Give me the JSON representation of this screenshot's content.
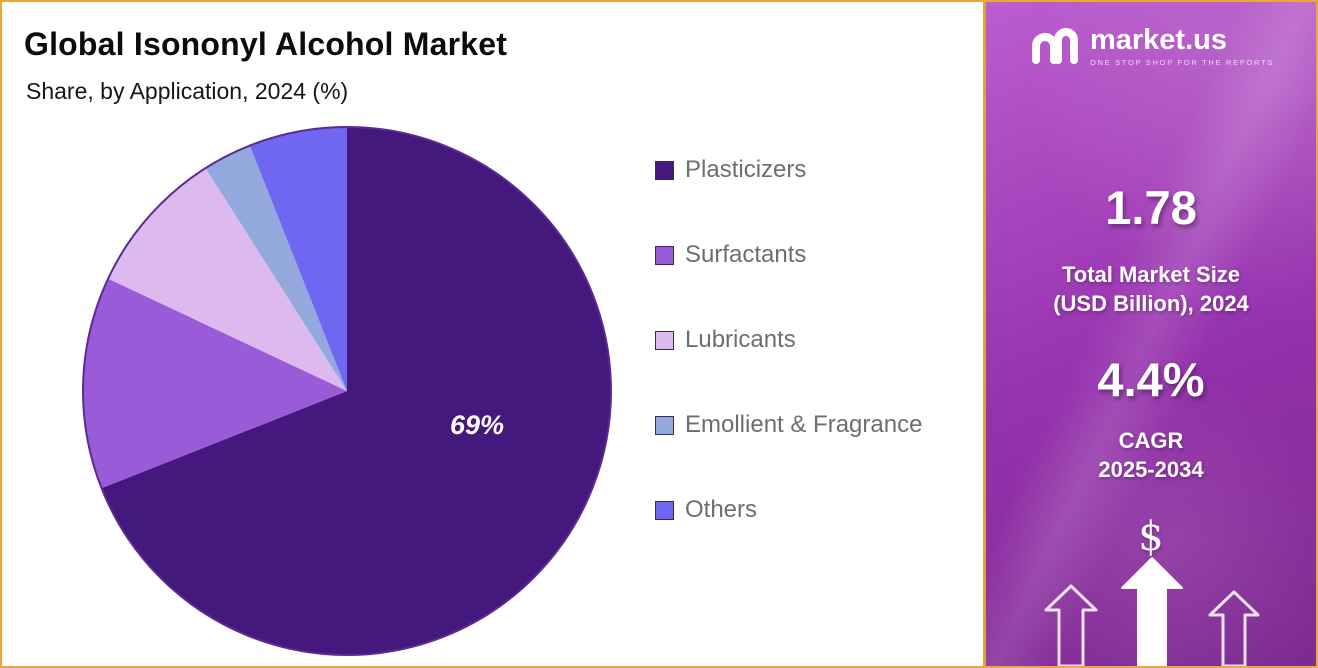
{
  "header": {
    "title": "Global Isononyl Alcohol Market",
    "subtitle": "Share, by Application, 2024 (%)"
  },
  "chart_data": {
    "type": "pie",
    "title": "Global Isononyl Alcohol Market",
    "subtitle": "Share, by Application, 2024 (%)",
    "unit": "%",
    "categories": [
      "Plasticizers",
      "Surfactants",
      "Lubricants",
      "Emollient & Fragrance",
      "Others"
    ],
    "values": [
      69,
      13,
      9,
      3,
      6
    ],
    "colors": [
      "#45187d",
      "#9a5bd8",
      "#dcb9ee",
      "#93a9dd",
      "#6f66f2"
    ],
    "slice_label": "69%",
    "labeled_slice": "Plasticizers",
    "start_angle": "top",
    "direction": "clockwise",
    "legend_position": "right"
  },
  "side_panel": {
    "logo_text": "market.us",
    "logo_tagline": "ONE STOP SHOP FOR THE REPORTS",
    "market_size_value": "1.78",
    "market_size_label_line1": "Total Market Size",
    "market_size_label_line2": "(USD Billion), 2024",
    "cagr_value": "4.4%",
    "cagr_label_line1": "CAGR",
    "cagr_label_line2": "2025-2034",
    "dollar_symbol": "$"
  }
}
